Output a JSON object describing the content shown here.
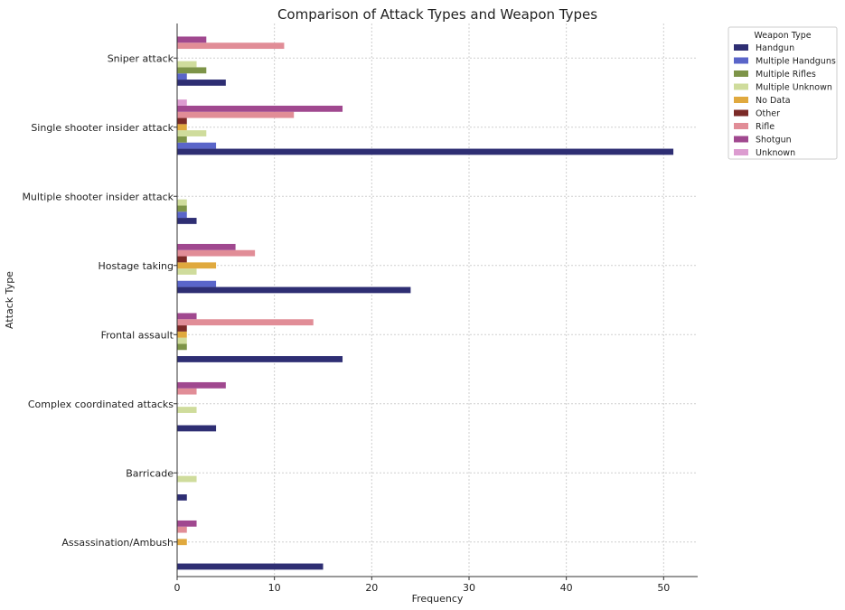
{
  "chart_data": {
    "type": "bar",
    "orientation": "horizontal",
    "title": "Comparison of Attack Types and Weapon Types",
    "xlabel": "Frequency",
    "ylabel": "Attack Type",
    "xlim": [
      0,
      53.5
    ],
    "xticks": [
      0,
      10,
      20,
      30,
      40,
      50
    ],
    "grid": true,
    "legend_title": "Weapon Type",
    "legend_position": "outside-top-right",
    "categories": [
      "Assassination/Ambush",
      "Barricade",
      "Complex coordinated attacks",
      "Frontal assault",
      "Hostage taking",
      "Multiple shooter insider attack",
      "Single shooter insider attack",
      "Sniper attack"
    ],
    "series": [
      {
        "name": "Handgun",
        "color": "#2e2e73",
        "values": [
          15,
          1,
          4,
          17,
          24,
          2,
          51,
          5
        ]
      },
      {
        "name": "Multiple Handguns",
        "color": "#5a65c9",
        "values": [
          0,
          0,
          0,
          0,
          4,
          1,
          4,
          1
        ]
      },
      {
        "name": "Multiple Rifles",
        "color": "#7d9448",
        "values": [
          0,
          0,
          0,
          1,
          0,
          1,
          1,
          3
        ]
      },
      {
        "name": "Multiple Unknown",
        "color": "#cfdc9c",
        "values": [
          0,
          2,
          2,
          1,
          2,
          1,
          3,
          2
        ]
      },
      {
        "name": "No Data",
        "color": "#e0a93e",
        "values": [
          1,
          0,
          0,
          1,
          4,
          0,
          1,
          0
        ]
      },
      {
        "name": "Other",
        "color": "#7b2a27",
        "values": [
          0,
          0,
          0,
          1,
          1,
          0,
          1,
          0
        ]
      },
      {
        "name": "Rifle",
        "color": "#e18d97",
        "values": [
          1,
          0,
          2,
          14,
          8,
          0,
          12,
          11
        ]
      },
      {
        "name": "Shotgun",
        "color": "#a0488f",
        "values": [
          2,
          0,
          5,
          2,
          6,
          0,
          17,
          3
        ]
      },
      {
        "name": "Unknown",
        "color": "#dc9cd0",
        "values": [
          0,
          0,
          0,
          0,
          0,
          0,
          1,
          0
        ]
      }
    ]
  }
}
